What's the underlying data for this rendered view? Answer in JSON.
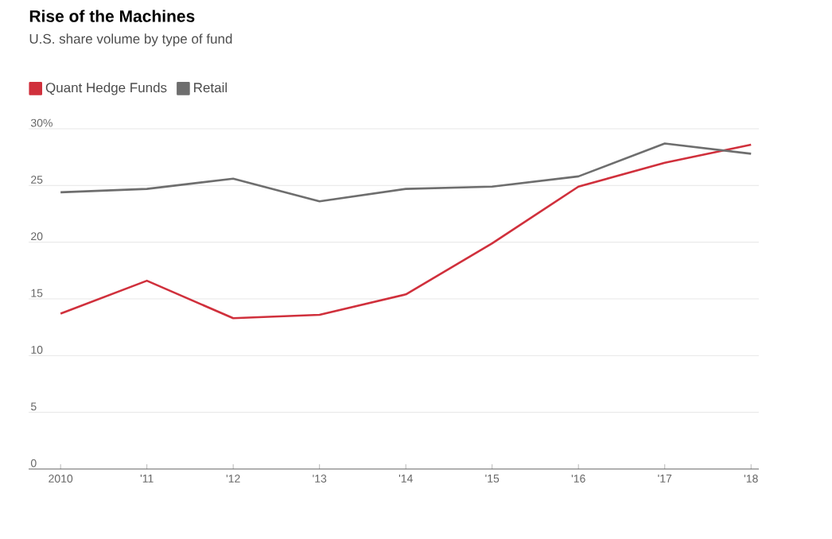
{
  "chart_data": {
    "type": "line",
    "title": "Rise of the Machines",
    "subtitle": "U.S. share volume by type of fund",
    "categories": [
      "2010",
      "'11",
      "'12",
      "'13",
      "'14",
      "'15",
      "'16",
      "'17",
      "'18"
    ],
    "series": [
      {
        "name": "Quant Hedge Funds",
        "color": "#d0303c",
        "values": [
          13.7,
          16.6,
          13.3,
          13.6,
          15.4,
          19.9,
          24.9,
          27.0,
          28.6
        ]
      },
      {
        "name": "Retail",
        "color": "#6e6e6e",
        "values": [
          24.4,
          24.7,
          25.6,
          23.6,
          24.7,
          24.9,
          25.8,
          28.7,
          27.8
        ]
      }
    ],
    "ylim": [
      0,
      30
    ],
    "yticks": [
      {
        "value": 0,
        "label": "0"
      },
      {
        "value": 5,
        "label": "5"
      },
      {
        "value": 10,
        "label": "10"
      },
      {
        "value": 15,
        "label": "15"
      },
      {
        "value": 20,
        "label": "20"
      },
      {
        "value": 25,
        "label": "25"
      },
      {
        "value": 30,
        "label": "30%"
      }
    ],
    "grid": "y",
    "legend": "top left",
    "marker": "none",
    "line_style": "solid"
  }
}
